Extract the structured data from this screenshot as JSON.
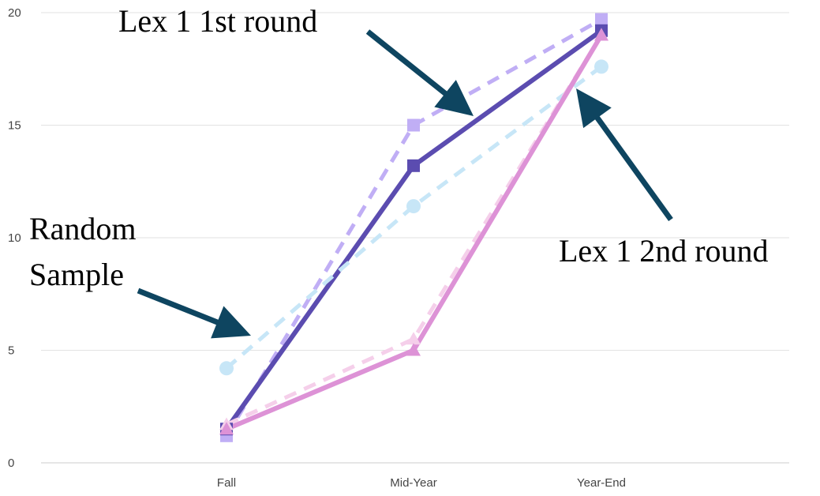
{
  "chart_data": {
    "type": "line",
    "categories": [
      "Fall",
      "Mid-Year",
      "Year-End"
    ],
    "ylim": [
      0,
      20
    ],
    "yticks": [
      0,
      5,
      10,
      15,
      20
    ],
    "grid": true,
    "legend": "none",
    "series": [
      {
        "values": [
          1.2,
          15.0,
          19.7
        ],
        "color": "#c0aef5",
        "dash": true,
        "marker": "square"
      },
      {
        "values": [
          1.5,
          13.2,
          19.2
        ],
        "color": "#5b4cb0",
        "dash": false,
        "marker": "square"
      },
      {
        "values": [
          4.2,
          11.4,
          17.6
        ],
        "color": "#c7e6f7",
        "dash": true,
        "marker": "circle"
      },
      {
        "values": [
          1.7,
          5.5,
          19.0
        ],
        "color": "#f5cfea",
        "dash": true,
        "marker": "triangle"
      },
      {
        "values": [
          1.5,
          5.0,
          19.0
        ],
        "color": "#dd92d6",
        "dash": false,
        "marker": "triangle"
      }
    ],
    "annotations": [
      {
        "text": "Lex 1 1st round"
      },
      {
        "text": "Random"
      },
      {
        "text": "Sample"
      },
      {
        "text": "Lex 1 2nd round"
      }
    ],
    "arrow_color": "#0e4560"
  }
}
